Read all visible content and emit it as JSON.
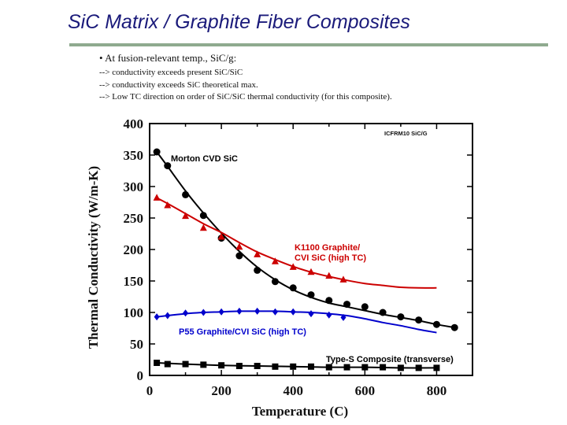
{
  "slide": {
    "title": "SiC Matrix / Graphite Fiber Composites",
    "bullet": "•  At fusion-relevant temp., SiC/g:",
    "lines": [
      "--> conductivity exceeds present SiC/SiC",
      "--> conductivity exceeds SiC theoretical max.",
      "--> Low TC direction on order of SiC/SiC thermal conductivity (for this composite)."
    ]
  },
  "chart_data": {
    "type": "line",
    "annotation": "ICFRM10 SiC/G",
    "xlabel": "Temperature (C)",
    "ylabel": "Thermal Conductivity (W/m-K)",
    "xlim": [
      0,
      900
    ],
    "ylim": [
      0,
      400
    ],
    "xticks": [
      0,
      200,
      400,
      600,
      800
    ],
    "yticks": [
      0,
      50,
      100,
      150,
      200,
      250,
      300,
      350,
      400
    ],
    "series": [
      {
        "name": "Morton CVD SiC",
        "color": "#000000",
        "marker": "circle",
        "points": [
          [
            20,
            355
          ],
          [
            50,
            333
          ],
          [
            100,
            287
          ],
          [
            150,
            254
          ],
          [
            200,
            218
          ],
          [
            250,
            190
          ],
          [
            300,
            167
          ],
          [
            350,
            149
          ],
          [
            400,
            139
          ],
          [
            450,
            128
          ],
          [
            500,
            119
          ],
          [
            550,
            113
          ],
          [
            600,
            109
          ],
          [
            650,
            100
          ],
          [
            700,
            93
          ],
          [
            750,
            88
          ],
          [
            800,
            81
          ],
          [
            850,
            76
          ]
        ],
        "fit": [
          [
            20,
            355
          ],
          [
            50,
            332
          ],
          [
            100,
            293
          ],
          [
            150,
            258
          ],
          [
            200,
            226
          ],
          [
            250,
            197
          ],
          [
            300,
            172
          ],
          [
            350,
            152
          ],
          [
            400,
            136
          ],
          [
            450,
            124
          ],
          [
            500,
            115
          ],
          [
            550,
            109
          ],
          [
            600,
            103
          ],
          [
            650,
            97
          ],
          [
            700,
            92
          ],
          [
            750,
            87
          ],
          [
            800,
            81
          ],
          [
            850,
            76
          ]
        ]
      },
      {
        "name": "K1100 Graphite/ CVI SiC (high TC)",
        "label_lines": [
          "K1100 Graphite/",
          "CVI SiC (high TC)"
        ],
        "color": "#cc0000",
        "marker": "triangle",
        "points": [
          [
            20,
            282
          ],
          [
            50,
            270
          ],
          [
            100,
            253
          ],
          [
            150,
            234
          ],
          [
            200,
            220
          ],
          [
            250,
            204
          ],
          [
            300,
            192
          ],
          [
            350,
            181
          ],
          [
            400,
            172
          ],
          [
            450,
            164
          ],
          [
            500,
            158
          ],
          [
            540,
            152
          ]
        ],
        "fit": [
          [
            20,
            282
          ],
          [
            50,
            273
          ],
          [
            100,
            257
          ],
          [
            150,
            241
          ],
          [
            200,
            227
          ],
          [
            250,
            211
          ],
          [
            300,
            196
          ],
          [
            350,
            184
          ],
          [
            400,
            173
          ],
          [
            450,
            164
          ],
          [
            500,
            157
          ],
          [
            550,
            151
          ],
          [
            600,
            146
          ],
          [
            650,
            143
          ],
          [
            700,
            140
          ],
          [
            750,
            139
          ],
          [
            800,
            139
          ]
        ]
      },
      {
        "name": "P55 Graphite/CVI SiC (high TC)",
        "color": "#0000cc",
        "marker": "diamond",
        "points": [
          [
            20,
            93
          ],
          [
            50,
            95
          ],
          [
            100,
            99
          ],
          [
            150,
            100
          ],
          [
            200,
            101
          ],
          [
            250,
            102
          ],
          [
            300,
            102
          ],
          [
            350,
            101
          ],
          [
            400,
            101
          ],
          [
            450,
            98
          ],
          [
            500,
            96
          ],
          [
            540,
            92
          ]
        ],
        "fit": [
          [
            20,
            93
          ],
          [
            50,
            95
          ],
          [
            100,
            98
          ],
          [
            150,
            100
          ],
          [
            200,
            101
          ],
          [
            250,
            102
          ],
          [
            300,
            102
          ],
          [
            350,
            102
          ],
          [
            400,
            101
          ],
          [
            450,
            100
          ],
          [
            500,
            98
          ],
          [
            550,
            95
          ],
          [
            600,
            90
          ],
          [
            650,
            84
          ],
          [
            700,
            79
          ],
          [
            750,
            73
          ],
          [
            800,
            68
          ]
        ]
      },
      {
        "name": "Type-S Composite (transverse)",
        "color": "#000000",
        "marker": "square",
        "points": [
          [
            20,
            20
          ],
          [
            50,
            18
          ],
          [
            100,
            18
          ],
          [
            150,
            17
          ],
          [
            200,
            16
          ],
          [
            250,
            15
          ],
          [
            300,
            15
          ],
          [
            350,
            14
          ],
          [
            400,
            14
          ],
          [
            450,
            14
          ],
          [
            500,
            13
          ],
          [
            550,
            13
          ],
          [
            600,
            13
          ],
          [
            650,
            13
          ],
          [
            700,
            12
          ],
          [
            750,
            12
          ],
          [
            800,
            12
          ]
        ],
        "fit": [
          [
            20,
            20
          ],
          [
            100,
            18
          ],
          [
            200,
            16
          ],
          [
            300,
            15
          ],
          [
            400,
            14
          ],
          [
            500,
            13
          ],
          [
            600,
            13
          ],
          [
            700,
            12
          ],
          [
            800,
            12
          ]
        ]
      }
    ]
  }
}
